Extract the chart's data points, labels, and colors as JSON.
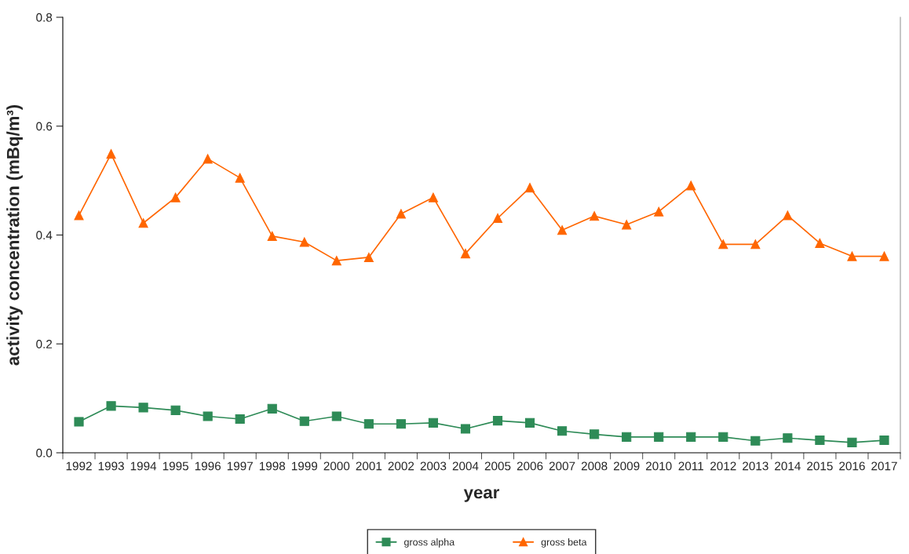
{
  "chart_data": {
    "type": "line",
    "xlabel": "year",
    "ylabel": "activity concentration (mBq/m³)",
    "categories": [
      "1992",
      "1993",
      "1994",
      "1995",
      "1996",
      "1997",
      "1998",
      "1999",
      "2000",
      "2001",
      "2002",
      "2003",
      "2004",
      "2005",
      "2006",
      "2007",
      "2008",
      "2009",
      "2010",
      "2011",
      "2012",
      "2013",
      "2014",
      "2015",
      "2016",
      "2017"
    ],
    "series": [
      {
        "name": "gross alpha",
        "color": "#2e8b57",
        "marker": "square",
        "values": [
          0.057,
          0.086,
          0.083,
          0.078,
          0.067,
          0.062,
          0.081,
          0.058,
          0.067,
          0.053,
          0.053,
          0.055,
          0.044,
          0.059,
          0.055,
          0.04,
          0.034,
          0.029,
          0.029,
          0.029,
          0.029,
          0.022,
          0.027,
          0.023,
          0.019,
          0.023
        ]
      },
      {
        "name": "gross beta",
        "color": "#ff6600",
        "marker": "triangle",
        "values": [
          0.436,
          0.549,
          0.422,
          0.469,
          0.54,
          0.505,
          0.398,
          0.387,
          0.353,
          0.359,
          0.439,
          0.469,
          0.366,
          0.431,
          0.487,
          0.409,
          0.435,
          0.419,
          0.443,
          0.491,
          0.383,
          0.383,
          0.436,
          0.385,
          0.361,
          0.361
        ]
      }
    ],
    "ylim": [
      0,
      0.8
    ],
    "yticks": [
      {
        "value": 0,
        "label": "0.0"
      },
      0.2,
      0.4,
      0.6,
      0.8
    ],
    "grid": false,
    "legend": "bottom",
    "line_style": "solid"
  }
}
